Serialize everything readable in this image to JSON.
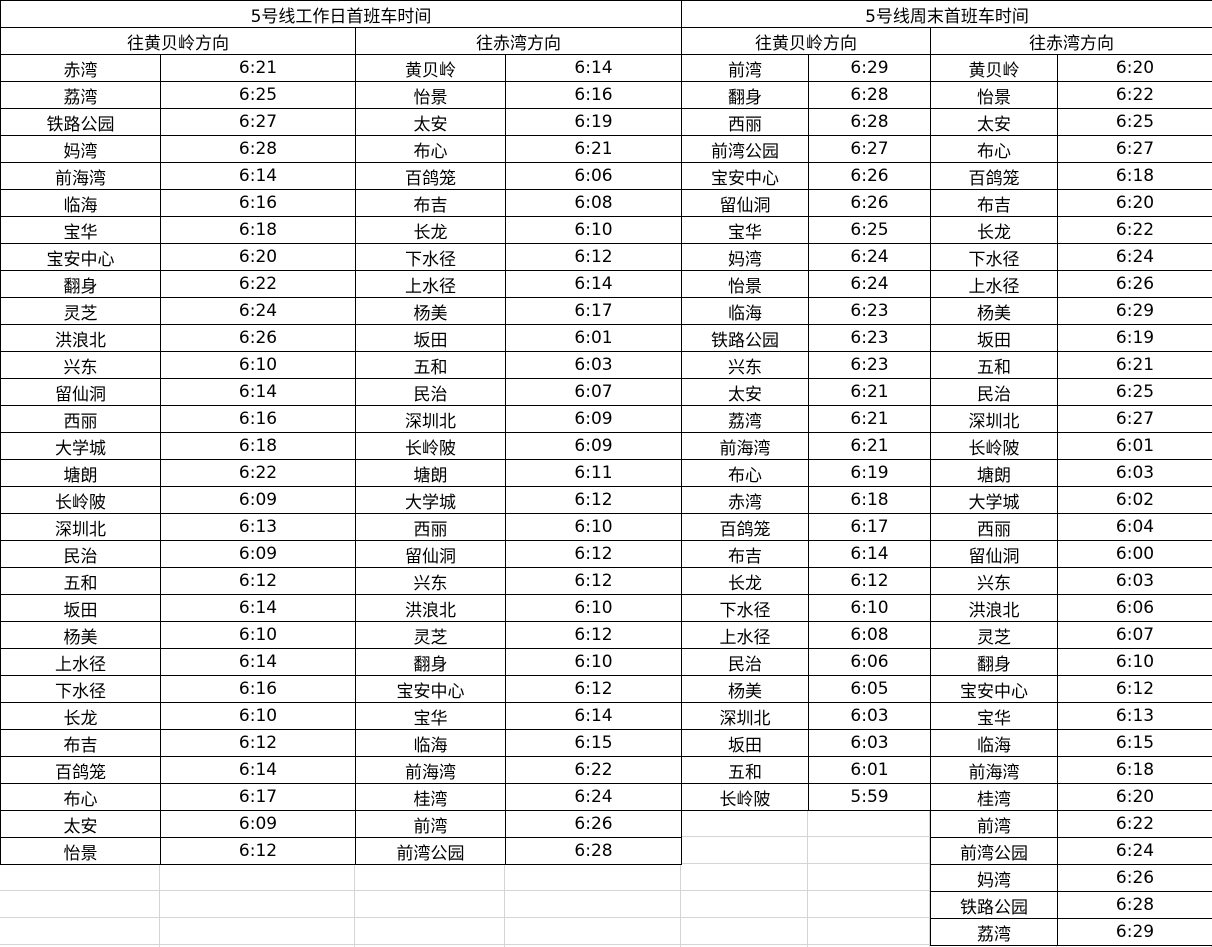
{
  "weekday": {
    "title": "5号线工作日首班车时间",
    "to_huangbeiling": {
      "label": "往黄贝岭方向",
      "rows": [
        [
          "赤湾",
          "6:21"
        ],
        [
          "荔湾",
          "6:25"
        ],
        [
          "铁路公园",
          "6:27"
        ],
        [
          "妈湾",
          "6:28"
        ],
        [
          "前海湾",
          "6:14"
        ],
        [
          "临海",
          "6:16"
        ],
        [
          "宝华",
          "6:18"
        ],
        [
          "宝安中心",
          "6:20"
        ],
        [
          "翻身",
          "6:22"
        ],
        [
          "灵芝",
          "6:24"
        ],
        [
          "洪浪北",
          "6:26"
        ],
        [
          "兴东",
          "6:10"
        ],
        [
          "留仙洞",
          "6:14"
        ],
        [
          "西丽",
          "6:16"
        ],
        [
          "大学城",
          "6:18"
        ],
        [
          "塘朗",
          "6:22"
        ],
        [
          "长岭陂",
          "6:09"
        ],
        [
          "深圳北",
          "6:13"
        ],
        [
          "民治",
          "6:09"
        ],
        [
          "五和",
          "6:12"
        ],
        [
          "坂田",
          "6:14"
        ],
        [
          "杨美",
          "6:10"
        ],
        [
          "上水径",
          "6:14"
        ],
        [
          "下水径",
          "6:16"
        ],
        [
          "长龙",
          "6:10"
        ],
        [
          "布吉",
          "6:12"
        ],
        [
          "百鸽笼",
          "6:14"
        ],
        [
          "布心",
          "6:17"
        ],
        [
          "太安",
          "6:09"
        ],
        [
          "怡景",
          "6:12"
        ]
      ]
    },
    "to_chiwan": {
      "label": "往赤湾方向",
      "rows": [
        [
          "黄贝岭",
          "6:14"
        ],
        [
          "怡景",
          "6:16"
        ],
        [
          "太安",
          "6:19"
        ],
        [
          "布心",
          "6:21"
        ],
        [
          "百鸽笼",
          "6:06"
        ],
        [
          "布吉",
          "6:08"
        ],
        [
          "长龙",
          "6:10"
        ],
        [
          "下水径",
          "6:12"
        ],
        [
          "上水径",
          "6:14"
        ],
        [
          "杨美",
          "6:17"
        ],
        [
          "坂田",
          "6:01"
        ],
        [
          "五和",
          "6:03"
        ],
        [
          "民治",
          "6:07"
        ],
        [
          "深圳北",
          "6:09"
        ],
        [
          "长岭陂",
          "6:09"
        ],
        [
          "塘朗",
          "6:11"
        ],
        [
          "大学城",
          "6:12"
        ],
        [
          "西丽",
          "6:10"
        ],
        [
          "留仙洞",
          "6:12"
        ],
        [
          "兴东",
          "6:12"
        ],
        [
          "洪浪北",
          "6:10"
        ],
        [
          "灵芝",
          "6:12"
        ],
        [
          "翻身",
          "6:10"
        ],
        [
          "宝安中心",
          "6:12"
        ],
        [
          "宝华",
          "6:14"
        ],
        [
          "临海",
          "6:15"
        ],
        [
          "前海湾",
          "6:22"
        ],
        [
          "桂湾",
          "6:24"
        ],
        [
          "前湾",
          "6:26"
        ],
        [
          "前湾公园",
          "6:28"
        ]
      ]
    }
  },
  "weekend": {
    "title": "5号线周末首班车时间",
    "to_huangbeiling": {
      "label": "往黄贝岭方向",
      "rows": [
        [
          "前湾",
          "6:29"
        ],
        [
          "翻身",
          "6:28"
        ],
        [
          "西丽",
          "6:28"
        ],
        [
          "前湾公园",
          "6:27"
        ],
        [
          "宝安中心",
          "6:26"
        ],
        [
          "留仙洞",
          "6:26"
        ],
        [
          "宝华",
          "6:25"
        ],
        [
          "妈湾",
          "6:24"
        ],
        [
          "怡景",
          "6:24"
        ],
        [
          "临海",
          "6:23"
        ],
        [
          "铁路公园",
          "6:23"
        ],
        [
          "兴东",
          "6:23"
        ],
        [
          "太安",
          "6:21"
        ],
        [
          "荔湾",
          "6:21"
        ],
        [
          "前海湾",
          "6:21"
        ],
        [
          "布心",
          "6:19"
        ],
        [
          "赤湾",
          "6:18"
        ],
        [
          "百鸽笼",
          "6:17"
        ],
        [
          "布吉",
          "6:14"
        ],
        [
          "长龙",
          "6:12"
        ],
        [
          "下水径",
          "6:10"
        ],
        [
          "上水径",
          "6:08"
        ],
        [
          "民治",
          "6:06"
        ],
        [
          "杨美",
          "6:05"
        ],
        [
          "深圳北",
          "6:03"
        ],
        [
          "坂田",
          "6:03"
        ],
        [
          "五和",
          "6:01"
        ],
        [
          "长岭陂",
          "5:59"
        ]
      ]
    },
    "to_chiwan": {
      "label": "往赤湾方向",
      "rows": [
        [
          "黄贝岭",
          "6:20"
        ],
        [
          "怡景",
          "6:22"
        ],
        [
          "太安",
          "6:25"
        ],
        [
          "布心",
          "6:27"
        ],
        [
          "百鸽笼",
          "6:18"
        ],
        [
          "布吉",
          "6:20"
        ],
        [
          "长龙",
          "6:22"
        ],
        [
          "下水径",
          "6:24"
        ],
        [
          "上水径",
          "6:26"
        ],
        [
          "杨美",
          "6:29"
        ],
        [
          "坂田",
          "6:19"
        ],
        [
          "五和",
          "6:21"
        ],
        [
          "民治",
          "6:25"
        ],
        [
          "深圳北",
          "6:27"
        ],
        [
          "长岭陂",
          "6:01"
        ],
        [
          "塘朗",
          "6:03"
        ],
        [
          "大学城",
          "6:02"
        ],
        [
          "西丽",
          "6:04"
        ],
        [
          "留仙洞",
          "6:00"
        ],
        [
          "兴东",
          "6:03"
        ],
        [
          "洪浪北",
          "6:06"
        ],
        [
          "灵芝",
          "6:07"
        ],
        [
          "翻身",
          "6:10"
        ],
        [
          "宝安中心",
          "6:12"
        ],
        [
          "宝华",
          "6:13"
        ],
        [
          "临海",
          "6:15"
        ],
        [
          "前海湾",
          "6:18"
        ],
        [
          "桂湾",
          "6:20"
        ],
        [
          "前湾",
          "6:22"
        ],
        [
          "前湾公园",
          "6:24"
        ],
        [
          "妈湾",
          "6:26"
        ],
        [
          "铁路公园",
          "6:28"
        ],
        [
          "荔湾",
          "6:29"
        ]
      ]
    }
  }
}
